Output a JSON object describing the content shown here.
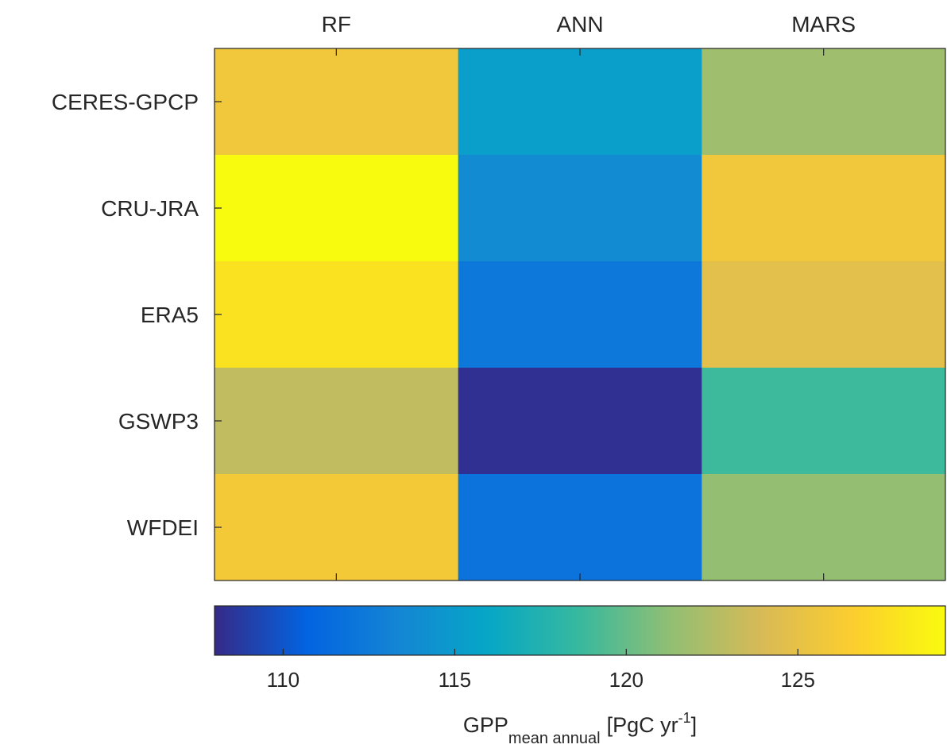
{
  "chart_data": {
    "type": "heatmap",
    "columns": [
      "RF",
      "ANN",
      "MARS"
    ],
    "rows": [
      "CERES-GPCP",
      "CRU-JRA",
      "ERA5",
      "GSWP3",
      "WFDEI"
    ],
    "values": [
      [
        125.8,
        115.3,
        121.8
      ],
      [
        129.3,
        113.8,
        125.8
      ],
      [
        127.8,
        112.3,
        124.7
      ],
      [
        123.1,
        108.3,
        118.8
      ],
      [
        126.0,
        111.9,
        121.4
      ]
    ],
    "colorbar": {
      "range": [
        108,
        129.3
      ],
      "ticks": [
        110,
        115,
        120,
        125
      ],
      "label_main": "GPP",
      "label_sub": "mean annual",
      "label_unit": "[PgC yr",
      "label_sup": "-1",
      "label_close": "]"
    },
    "colormap": [
      "#352a87",
      "#0363e1",
      "#1485d4",
      "#06a7c6",
      "#38b99e",
      "#92bf73",
      "#d9ba56",
      "#fcce2e",
      "#f9fb0e"
    ]
  }
}
